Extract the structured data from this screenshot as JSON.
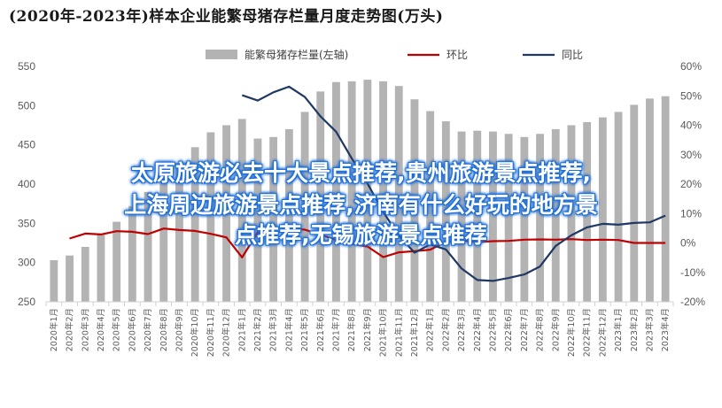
{
  "title": "(2020年-2023年)样本企业能繁母猪存栏量月度走势图(万头)",
  "overlay": {
    "line1": "太原旅游必去十大景点推荐,贵州旅游景点推荐,",
    "line2": "上海周边旅游景点推荐,济南有什么好玩的地方景",
    "line3": "点推荐,无锡旅游景点推荐"
  },
  "chart_data": {
    "type": "bar",
    "title": "(2020年-2023年)样本企业能繁母猪存栏量月度走势图(万头)",
    "categories": [
      "2020年1月",
      "2020年2月",
      "2020年3月",
      "2020年4月",
      "2020年5月",
      "2020年6月",
      "2020年7月",
      "2020年8月",
      "2020年9月",
      "2020年10月",
      "2020年11月",
      "2020年12月",
      "2021年1月",
      "2021年2月",
      "2021年3月",
      "2021年4月",
      "2021年5月",
      "2021年6月",
      "2021年7月",
      "2021年8月",
      "2021年9月",
      "2021年10月",
      "2021年11月",
      "2021年12月",
      "2022年1月",
      "2022年2月",
      "2022年3月",
      "2022年4月",
      "2022年5月",
      "2022年6月",
      "2022年7月",
      "2022年8月",
      "2022年9月",
      "2022年10月",
      "2022年11月",
      "2022年12月",
      "2023年1月",
      "2023年2月",
      "2023年3月",
      "2023年4月"
    ],
    "y_left": {
      "min": 250,
      "max": 550,
      "ticks": [
        250,
        300,
        350,
        400,
        450,
        500,
        550
      ]
    },
    "y_right": {
      "min": -20,
      "max": 60,
      "ticks": [
        "-20%",
        "-10%",
        "0%",
        "10%",
        "20%",
        "30%",
        "40%",
        "50%",
        "60%"
      ]
    },
    "legend": {
      "position": "top",
      "items": [
        {
          "name": "能繁母猪存栏量(左轴)",
          "color": "#b3b3b3",
          "kind": "bar"
        },
        {
          "name": "环比",
          "color": "#c00000",
          "kind": "line"
        },
        {
          "name": "同比",
          "color": "#1f3864",
          "kind": "line"
        }
      ]
    },
    "series": [
      {
        "name": "能繁母猪存栏量(左轴)",
        "axis": "left",
        "color": "#b3b3b3",
        "values": [
          303,
          309,
          320,
          337,
          352,
          372,
          390,
          410,
          427,
          447,
          466,
          475,
          483,
          458,
          460,
          470,
          492,
          518,
          530,
          531,
          533,
          531,
          525,
          508,
          493,
          480,
          467,
          468,
          467,
          464,
          460,
          464,
          470,
          475,
          479,
          485,
          492,
          501,
          509,
          512
        ]
      },
      {
        "name": "环比",
        "axis": "right",
        "color": "#c00000",
        "values": [
          null,
          1.5,
          3.2,
          2.9,
          4.0,
          3.8,
          3.0,
          4.9,
          4.4,
          4.1,
          3.1,
          1.9,
          -4.9,
          3.6,
          3.0,
          5.0,
          4.5,
          2.8,
          1.0,
          -0.3,
          -1.2,
          -4.8,
          -3.2,
          -2.8,
          -2.3,
          0.4,
          0.8,
          0.3,
          0.6,
          0.7,
          1.1,
          1.2,
          1.1,
          1.3,
          1.0,
          1.1,
          1.0,
          0.0,
          0.0,
          0.0
        ]
      },
      {
        "name": "同比",
        "axis": "right",
        "color": "#1f3864",
        "values": [
          null,
          null,
          null,
          null,
          null,
          null,
          null,
          null,
          null,
          null,
          null,
          null,
          50.2,
          48.4,
          51.2,
          53.1,
          49.6,
          43.0,
          37.8,
          28.7,
          20.2,
          10.5,
          2.5,
          -3.3,
          -0.5,
          -2.2,
          -8.7,
          -12.6,
          -12.9,
          -11.9,
          -10.7,
          -8.0,
          -1.0,
          2.6,
          5.3,
          6.5,
          6.2,
          6.8,
          7.0,
          9.3
        ]
      }
    ]
  }
}
